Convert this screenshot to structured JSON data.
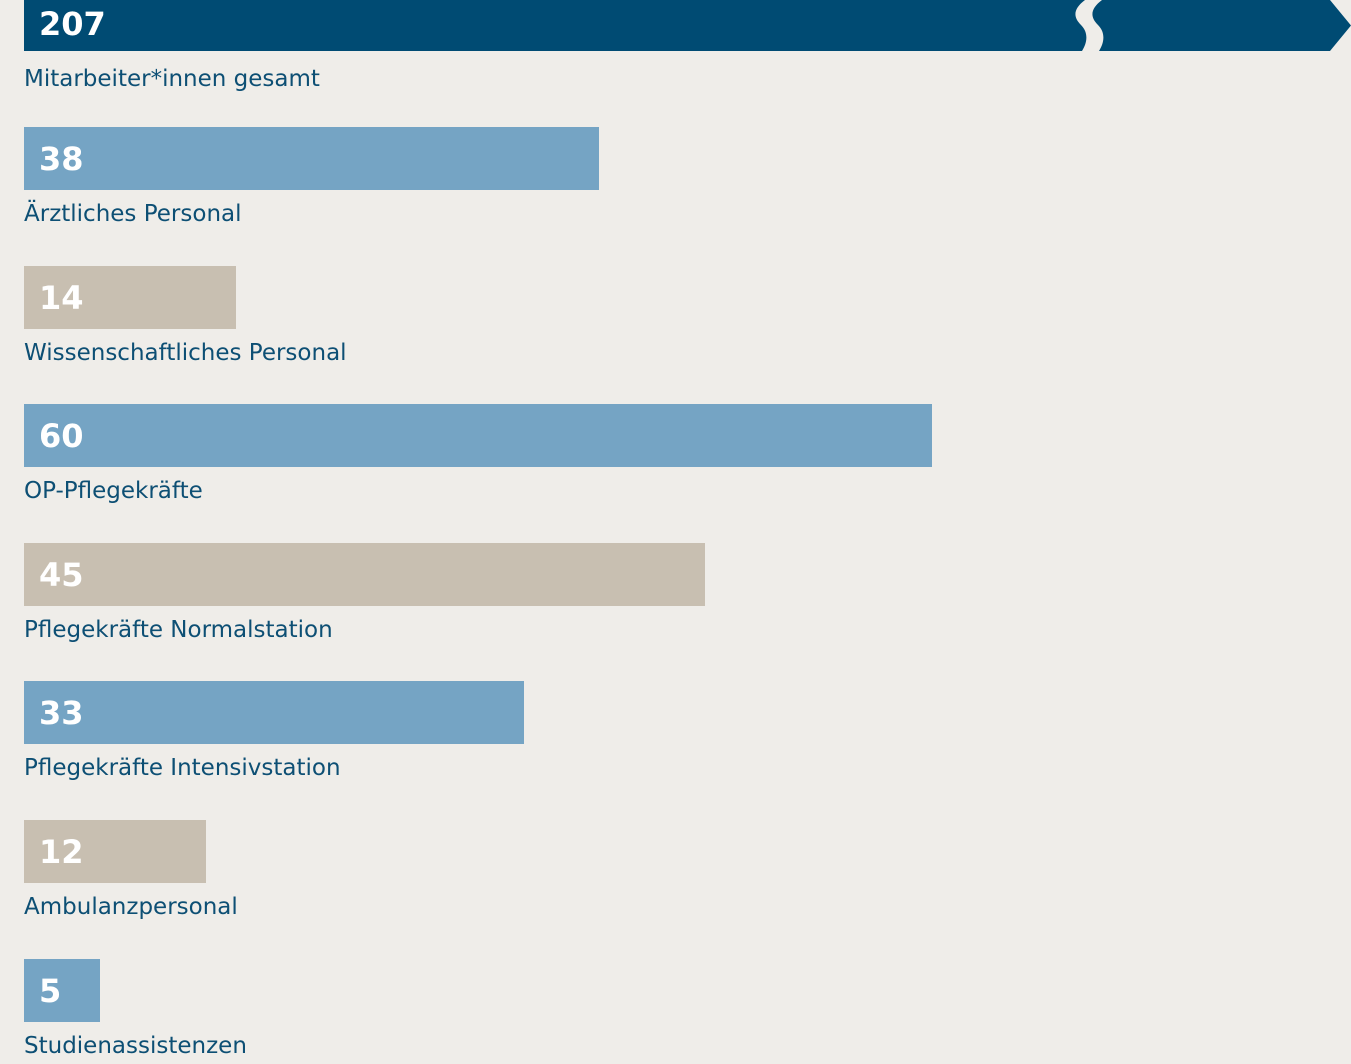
{
  "colors": {
    "background": "#efede9",
    "total": "#004b73",
    "blue": "#75a4c4",
    "beige": "#c8bfb1",
    "label_text": "#0d4f74",
    "value_text": "#ffffff"
  },
  "chart_data": {
    "type": "bar",
    "orientation": "horizontal",
    "title": "",
    "xlabel": "",
    "ylabel": "",
    "axis_break": true,
    "total": {
      "category": "Mitarbeiter*innen gesamt",
      "value": 207,
      "value_label": "207",
      "color": "#004b73"
    },
    "categories": [
      "Ärztliches Personal",
      "Wissenschaftliches Personal",
      "OP-Pflegekräfte",
      "Pflegekräfte Normalstation",
      "Pflegekräfte Intensivstation",
      "Ambulanzpersonal",
      "Studienassistenzen"
    ],
    "values": [
      38,
      14,
      60,
      45,
      33,
      12,
      5
    ],
    "value_labels": [
      "38",
      "14",
      "60",
      "45",
      "33",
      "12",
      "5"
    ],
    "bar_colors": [
      "#75a4c4",
      "#c8bfb1",
      "#75a4c4",
      "#c8bfb1",
      "#75a4c4",
      "#c8bfb1",
      "#75a4c4"
    ]
  }
}
